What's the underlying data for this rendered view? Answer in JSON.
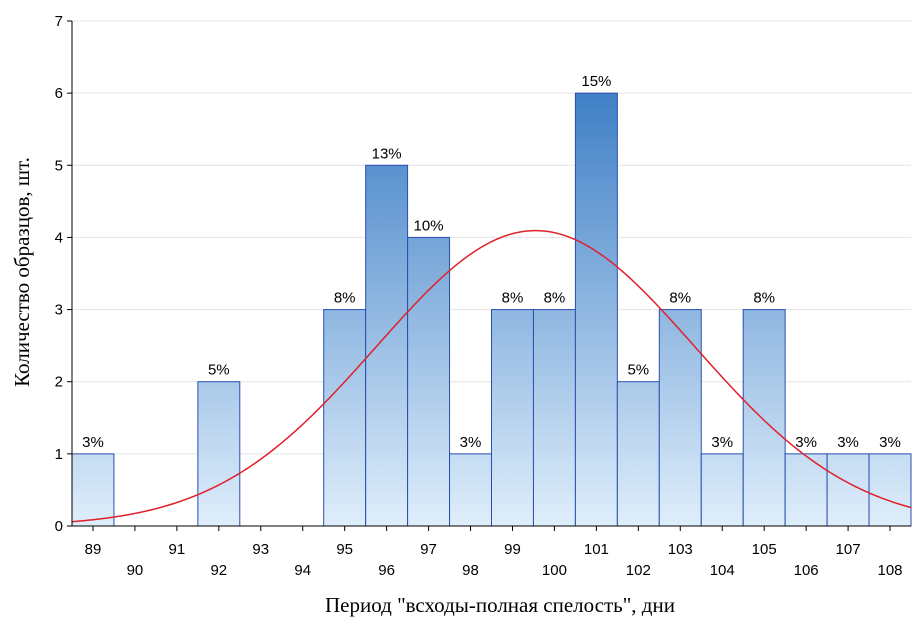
{
  "chart_data": {
    "type": "bar",
    "xlabel": "Период \"всходы-полная спелость\", дни",
    "ylabel": "Количество образцов, шт.",
    "ylim": [
      0,
      7
    ],
    "yticks": [
      "0",
      "1",
      "2",
      "3",
      "4",
      "5",
      "6",
      "7"
    ],
    "xrange": [
      88.5,
      108.5
    ],
    "xticks_row1": [
      "89",
      "91",
      "93",
      "95",
      "97",
      "99",
      "101",
      "103",
      "105",
      "107"
    ],
    "xticks_row2": [
      "90",
      "92",
      "94",
      "96",
      "98",
      "100",
      "102",
      "104",
      "106",
      "108"
    ],
    "grid": "horizontal",
    "bars": [
      {
        "x": 89,
        "value": 1,
        "label": "3%"
      },
      {
        "x": 92,
        "value": 2,
        "label": "5%"
      },
      {
        "x": 95,
        "value": 3,
        "label": "8%"
      },
      {
        "x": 96,
        "value": 5,
        "label": "13%"
      },
      {
        "x": 97,
        "value": 4,
        "label": "10%"
      },
      {
        "x": 98,
        "value": 1,
        "label": "3%"
      },
      {
        "x": 99,
        "value": 3,
        "label": "8%"
      },
      {
        "x": 100,
        "value": 3,
        "label": "8%"
      },
      {
        "x": 101,
        "value": 6,
        "label": "15%"
      },
      {
        "x": 102,
        "value": 2,
        "label": "5%"
      },
      {
        "x": 103,
        "value": 3,
        "label": "8%"
      },
      {
        "x": 104,
        "value": 1,
        "label": "3%"
      },
      {
        "x": 105,
        "value": 3,
        "label": "8%"
      },
      {
        "x": 106,
        "value": 1,
        "label": "3%"
      },
      {
        "x": 107,
        "value": 1,
        "label": "3%"
      },
      {
        "x": 108,
        "value": 1,
        "label": "3%"
      }
    ],
    "normal_curve": {
      "mean": 99.55,
      "sd": 3.8,
      "n": 39,
      "bin_width": 1,
      "color": "#e0202a"
    },
    "bar_colors": {
      "top": "#3f7fc6",
      "bottom": "#dfeefb",
      "edge": "#2a4fb0"
    }
  }
}
